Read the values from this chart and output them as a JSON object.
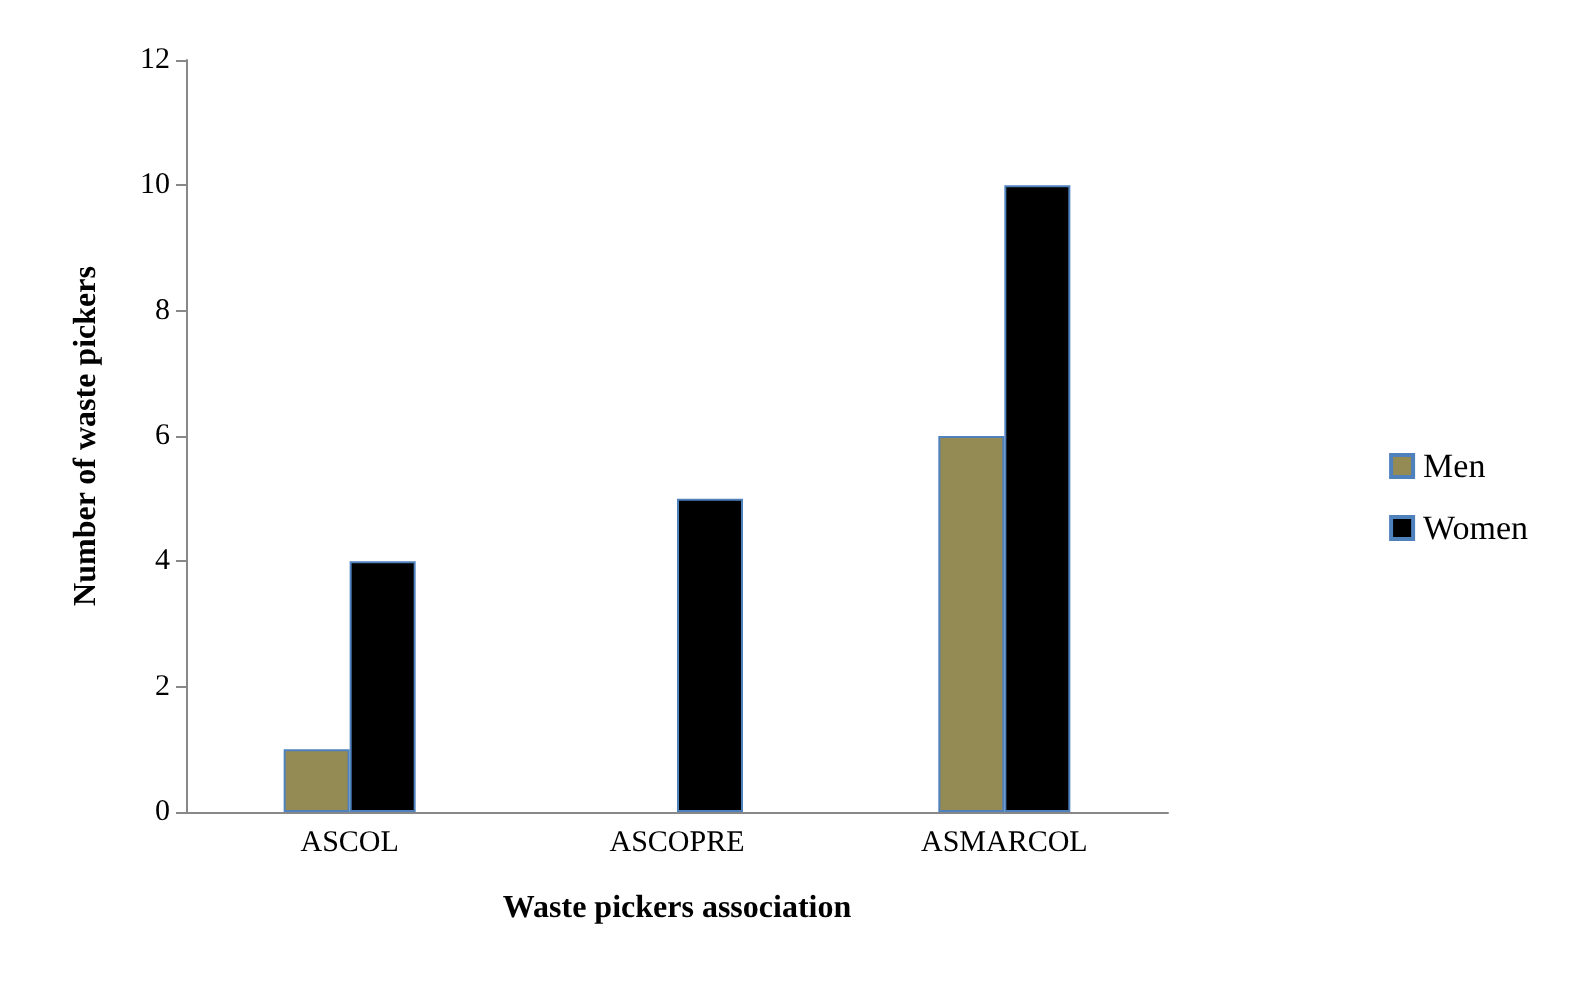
{
  "chart_data": {
    "type": "bar",
    "xlabel": "Waste pickers association",
    "ylabel": "Number of waste pickers",
    "categories": [
      "ASCOL",
      "ASCOPRE",
      "ASMARCOL"
    ],
    "series": [
      {
        "name": "Men",
        "color": "#948a54",
        "values": [
          1,
          null,
          6
        ]
      },
      {
        "name": "Women",
        "color": "#000000",
        "values": [
          4,
          5,
          10
        ]
      }
    ],
    "ylim": [
      0,
      12
    ],
    "yticks": [
      0,
      2,
      4,
      6,
      8,
      10,
      12
    ],
    "grid": false,
    "legend": "right"
  }
}
